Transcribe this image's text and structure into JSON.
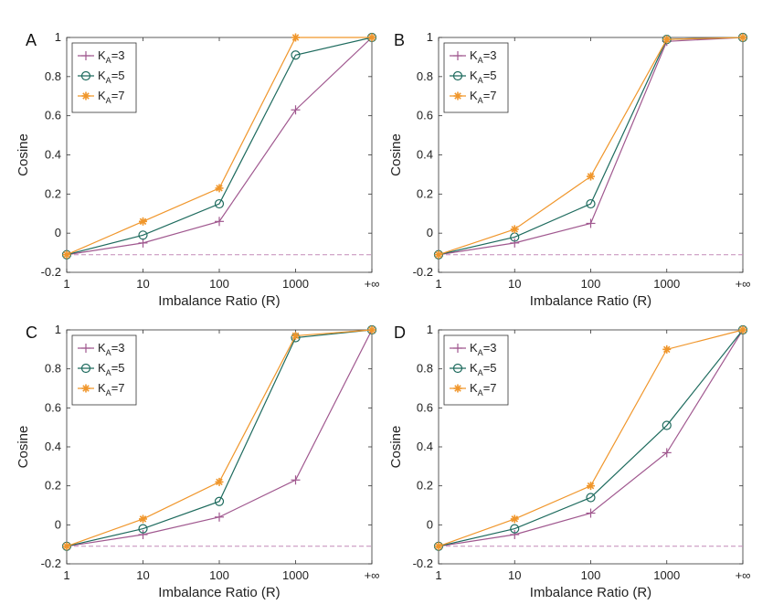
{
  "chart_data": [
    {
      "panel": "A",
      "type": "line",
      "xlabel": "Imbalance Ratio (R)",
      "ylabel": "Cosine",
      "categories": [
        "1",
        "10",
        "100",
        "1000",
        "+∞"
      ],
      "ylim": [
        -0.2,
        1
      ],
      "yticks": [
        "-0.2",
        "0",
        "0.2",
        "0.4",
        "0.6",
        "0.8",
        "1"
      ],
      "baseline": -0.11,
      "legend": [
        {
          "prefix": "K",
          "sub": "A",
          "suffix": "=3"
        },
        {
          "prefix": "K",
          "sub": "A",
          "suffix": "=5"
        },
        {
          "prefix": "K",
          "sub": "A",
          "suffix": "=7"
        }
      ],
      "series": [
        {
          "name": "KA=3",
          "values": [
            -0.11,
            -0.05,
            0.06,
            0.63,
            1.0
          ]
        },
        {
          "name": "KA=5",
          "values": [
            -0.11,
            -0.01,
            0.15,
            0.91,
            1.0
          ]
        },
        {
          "name": "KA=7",
          "values": [
            -0.11,
            0.06,
            0.23,
            1.0,
            1.0
          ]
        }
      ]
    },
    {
      "panel": "B",
      "type": "line",
      "xlabel": "Imbalance Ratio (R)",
      "ylabel": "Cosine",
      "categories": [
        "1",
        "10",
        "100",
        "1000",
        "+∞"
      ],
      "ylim": [
        -0.2,
        1
      ],
      "yticks": [
        "-0.2",
        "0",
        "0.2",
        "0.4",
        "0.6",
        "0.8",
        "1"
      ],
      "baseline": -0.11,
      "legend": [
        {
          "prefix": "K",
          "sub": "A",
          "suffix": "=3"
        },
        {
          "prefix": "K",
          "sub": "A",
          "suffix": "=5"
        },
        {
          "prefix": "K",
          "sub": "A",
          "suffix": "=7"
        }
      ],
      "series": [
        {
          "name": "KA=3",
          "values": [
            -0.11,
            -0.05,
            0.05,
            0.98,
            1.0
          ]
        },
        {
          "name": "KA=5",
          "values": [
            -0.11,
            -0.02,
            0.15,
            0.99,
            1.0
          ]
        },
        {
          "name": "KA=7",
          "values": [
            -0.11,
            0.02,
            0.29,
            0.99,
            1.0
          ]
        }
      ]
    },
    {
      "panel": "C",
      "type": "line",
      "xlabel": "Imbalance Ratio (R)",
      "ylabel": "Cosine",
      "categories": [
        "1",
        "10",
        "100",
        "1000",
        "+∞"
      ],
      "ylim": [
        -0.2,
        1
      ],
      "yticks": [
        "-0.2",
        "0",
        "0.2",
        "0.4",
        "0.6",
        "0.8",
        "1"
      ],
      "baseline": -0.11,
      "legend": [
        {
          "prefix": "K",
          "sub": "A",
          "suffix": "=3"
        },
        {
          "prefix": "K",
          "sub": "A",
          "suffix": "=5"
        },
        {
          "prefix": "K",
          "sub": "A",
          "suffix": "=7"
        }
      ],
      "series": [
        {
          "name": "KA=3",
          "values": [
            -0.11,
            -0.05,
            0.04,
            0.23,
            1.0
          ]
        },
        {
          "name": "KA=5",
          "values": [
            -0.11,
            -0.02,
            0.12,
            0.96,
            1.0
          ]
        },
        {
          "name": "KA=7",
          "values": [
            -0.11,
            0.03,
            0.22,
            0.97,
            1.0
          ]
        }
      ]
    },
    {
      "panel": "D",
      "type": "line",
      "xlabel": "Imbalance Ratio (R)",
      "ylabel": "Cosine",
      "categories": [
        "1",
        "10",
        "100",
        "1000",
        "+∞"
      ],
      "ylim": [
        -0.2,
        1
      ],
      "yticks": [
        "-0.2",
        "0",
        "0.2",
        "0.4",
        "0.6",
        "0.8",
        "1"
      ],
      "baseline": -0.11,
      "legend": [
        {
          "prefix": "K",
          "sub": "A",
          "suffix": "=3"
        },
        {
          "prefix": "K",
          "sub": "A",
          "suffix": "=5"
        },
        {
          "prefix": "K",
          "sub": "A",
          "suffix": "=7"
        }
      ],
      "series": [
        {
          "name": "KA=3",
          "values": [
            -0.11,
            -0.05,
            0.06,
            0.37,
            1.0
          ]
        },
        {
          "name": "KA=5",
          "values": [
            -0.11,
            -0.02,
            0.14,
            0.51,
            1.0
          ]
        },
        {
          "name": "KA=7",
          "values": [
            -0.11,
            0.03,
            0.2,
            0.9,
            1.0
          ]
        }
      ]
    }
  ],
  "colors": {
    "KA=3": "#a0588f",
    "KA=5": "#1e6b5e",
    "KA=7": "#f0962b",
    "baseline": "#c48ab8",
    "axis": "#333333"
  },
  "markers": {
    "KA=3": "plus-marker",
    "KA=5": "circle-marker",
    "KA=7": "star-marker"
  }
}
